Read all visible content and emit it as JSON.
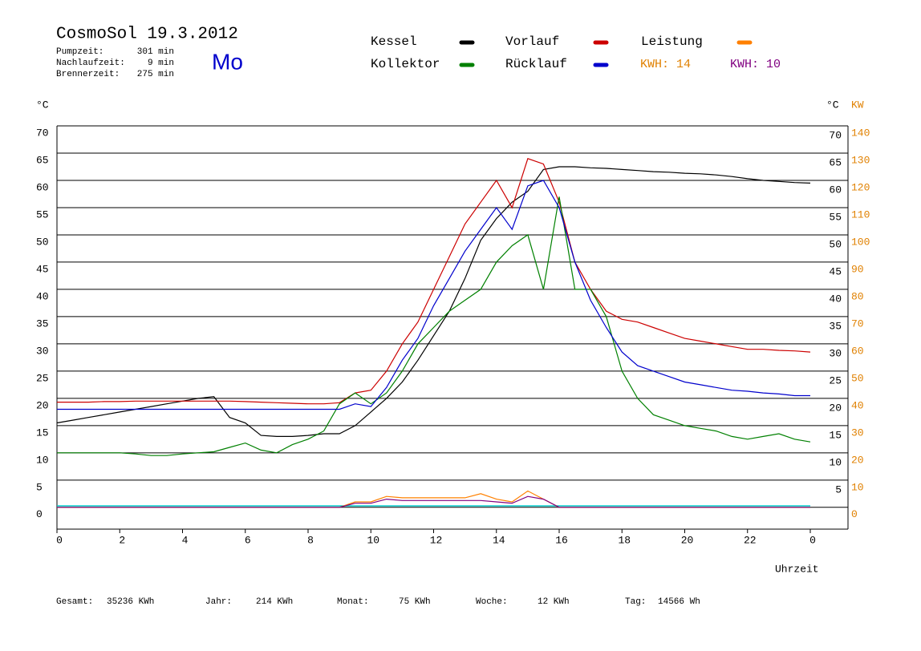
{
  "header": {
    "title": "CosmoSol 19.3.2012",
    "day": "Mo",
    "stats": [
      {
        "label": "Pumpzeit:",
        "value": "301 min"
      },
      {
        "label": "Nachlaufzeit:",
        "value": "9 min"
      },
      {
        "label": "Brennerzeit:",
        "value": "275 min"
      }
    ],
    "kwh_orange": "KWH: 14",
    "kwh_purple": "KWH: 10"
  },
  "footer": [
    {
      "label": "Gesamt:",
      "value": "35236 KWh"
    },
    {
      "label": "Jahr:",
      "value": "214 KWh"
    },
    {
      "label": "Monat:",
      "value": "75 KWh"
    },
    {
      "label": "Woche:",
      "value": "12 KWh"
    },
    {
      "label": "Tag:",
      "value": "14566 Wh"
    }
  ],
  "chart_data": {
    "type": "line",
    "y_label": "°C",
    "y_label_right": "°C",
    "y2_label": "KW",
    "x_label": "Uhrzeit",
    "x": [
      0,
      0.5,
      1,
      1.5,
      2,
      2.5,
      3,
      3.5,
      4,
      4.5,
      5,
      5.5,
      6,
      6.5,
      7,
      7.5,
      8,
      8.5,
      9,
      9.5,
      10,
      10.5,
      11,
      11.5,
      12,
      12.5,
      13,
      13.5,
      14,
      14.5,
      15,
      15.5,
      16,
      16.5,
      17,
      17.5,
      18,
      18.5,
      19,
      19.5,
      20,
      20.5,
      21,
      21.5,
      22,
      22.5,
      23,
      23.5,
      24
    ],
    "xlim": [
      0,
      24
    ],
    "xticks": [
      0,
      2,
      4,
      6,
      8,
      10,
      12,
      14,
      16,
      18,
      20,
      22,
      {
        "value": 24,
        "label": "0"
      }
    ],
    "ylim": [
      -4,
      70
    ],
    "yticks": [
      0,
      5,
      10,
      15,
      20,
      25,
      30,
      35,
      40,
      45,
      50,
      55,
      60,
      65,
      70
    ],
    "yticks_right": [
      5,
      10,
      15,
      20,
      25,
      30,
      35,
      40,
      45,
      50,
      55,
      60,
      65,
      70
    ],
    "y2lim": [
      -8,
      140
    ],
    "y2ticks": [
      0,
      10,
      20,
      30,
      40,
      50,
      60,
      70,
      80,
      90,
      100,
      110,
      120,
      130,
      140
    ],
    "grid": true,
    "series": [
      {
        "name": "Kessel",
        "color": "#000000",
        "values": [
          15.5,
          16,
          16.5,
          17,
          17.5,
          18,
          18.5,
          19,
          19.5,
          20,
          20.3,
          16.5,
          15.5,
          13.2,
          13,
          13,
          13.2,
          13.5,
          13.5,
          15,
          17.5,
          20,
          23,
          27,
          31.5,
          36,
          42,
          49,
          53,
          56,
          58,
          62,
          62.5,
          62.5,
          62.3,
          62.2,
          62,
          61.8,
          61.6,
          61.5,
          61.3,
          61.2,
          61,
          60.7,
          60.3,
          60,
          59.8,
          59.6,
          59.5
        ]
      },
      {
        "name": "Vorlauf",
        "color": "#cc0000",
        "values": [
          19.3,
          19.3,
          19.3,
          19.4,
          19.4,
          19.5,
          19.5,
          19.5,
          19.5,
          19.5,
          19.5,
          19.5,
          19.4,
          19.3,
          19.2,
          19.1,
          19,
          19,
          19.2,
          21,
          21.5,
          25,
          30,
          34,
          40,
          46,
          52,
          56,
          60,
          55,
          64,
          63,
          56,
          45,
          40,
          36,
          34.5,
          34,
          33,
          32,
          31,
          30.5,
          30,
          29.5,
          29,
          29,
          28.8,
          28.7,
          28.5
        ]
      },
      {
        "name": "Leistung",
        "color": "#ff8000",
        "axis": "y2",
        "values": [
          0,
          0,
          0,
          0,
          0,
          0,
          0,
          0,
          0,
          0,
          0,
          0,
          0,
          0,
          0,
          0,
          0,
          0,
          0,
          2,
          2,
          4,
          3.5,
          3.5,
          3.5,
          3.5,
          3.5,
          5,
          3,
          2,
          6,
          3,
          0,
          0,
          0,
          0,
          0,
          0,
          0,
          0,
          0,
          0,
          0,
          0,
          0,
          0,
          0,
          0,
          0
        ]
      },
      {
        "name": "Kollektor",
        "color": "#008000",
        "values": [
          10,
          10,
          10,
          10,
          10,
          9.8,
          9.5,
          9.5,
          9.8,
          10,
          10.2,
          11,
          11.8,
          10.5,
          10,
          11.5,
          12.5,
          14,
          19,
          21,
          19,
          21,
          25,
          30,
          33,
          36,
          38,
          40,
          45,
          48,
          50,
          40,
          57,
          40,
          40,
          35,
          25,
          20,
          17,
          16,
          15,
          14.5,
          14,
          13,
          12.5,
          13,
          13.5,
          12.5,
          12
        ]
      },
      {
        "name": "Rücklauf",
        "color": "#0000cc",
        "values": [
          18,
          18,
          18,
          18,
          18,
          18,
          18,
          18,
          18,
          18,
          18,
          18,
          18,
          18,
          18,
          18,
          18,
          18,
          18,
          19,
          18.5,
          22,
          27,
          31,
          37,
          42,
          47,
          51,
          55,
          51,
          59,
          60,
          55,
          45,
          38,
          33,
          28.5,
          26,
          25,
          24,
          23,
          22.5,
          22,
          21.5,
          21.3,
          21,
          20.8,
          20.5,
          20.5
        ]
      },
      {
        "color": "#800080",
        "axis": "y2",
        "values": [
          0,
          0,
          0,
          0,
          0,
          0,
          0,
          0,
          0,
          0,
          0,
          0,
          0,
          0,
          0,
          0,
          0,
          0,
          0,
          1.5,
          1.5,
          3,
          2.5,
          2.5,
          2.5,
          2.5,
          2.5,
          2.5,
          2,
          1.5,
          4,
          3,
          0,
          0,
          0,
          0,
          0,
          0,
          0,
          0,
          0,
          0,
          0,
          0,
          0,
          0,
          0,
          0,
          0
        ]
      }
    ]
  }
}
